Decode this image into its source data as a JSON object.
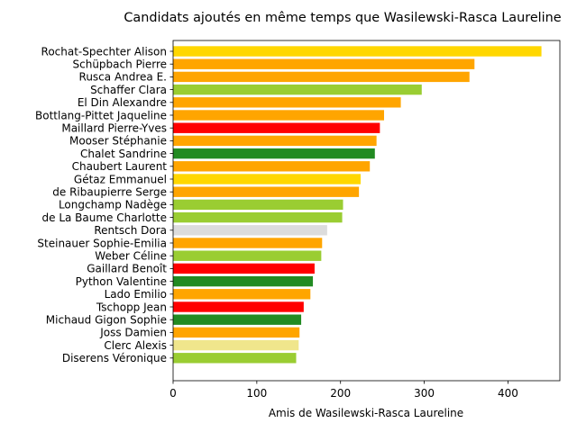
{
  "chart_data": {
    "type": "bar",
    "orientation": "horizontal",
    "title": "Candidats ajoutés en même temps que Wasilewski-Rasca Laureline",
    "xlabel": "Amis de Wasilewski-Rasca Laureline",
    "ylabel": "",
    "xlim": [
      0,
      462
    ],
    "xticks": [
      0,
      100,
      200,
      300,
      400
    ],
    "grid": false,
    "categories": [
      "Rochat-Spechter Alison",
      "Schüpbach Pierre",
      "Rusca Andrea E.",
      "Schaffer Clara",
      "El Din Alexandre",
      "Bottlang-Pittet Jaqueline",
      "Maillard Pierre-Yves",
      "Mooser Stéphanie",
      "Chalet Sandrine",
      "Chaubert Laurent",
      "Gétaz Emmanuel",
      "de Ribaupierre Serge",
      "Longchamp Nadège",
      "de La Baume Charlotte",
      "Rentsch Dora",
      "Steinauer Sophie-Emilia",
      "Weber Céline",
      "Gaillard Benoît",
      "Python Valentine",
      "Lado Emilio",
      "Tschopp Jean",
      "Michaud Gigon Sophie",
      "Joss Damien",
      "Clerc Alexis",
      "Diserens Véronique"
    ],
    "values": [
      440,
      360,
      354,
      297,
      272,
      252,
      247,
      243,
      241,
      235,
      224,
      222,
      203,
      202,
      184,
      178,
      177,
      169,
      167,
      164,
      156,
      153,
      151,
      150,
      147
    ],
    "colors": [
      "#ffd700",
      "#ffa500",
      "#ffa500",
      "#9acd32",
      "#ffa500",
      "#ffa500",
      "#ff0000",
      "#ffa500",
      "#228b22",
      "#ffa500",
      "#ffd700",
      "#ffa500",
      "#9acd32",
      "#9acd32",
      "#dcdcdc",
      "#ffa500",
      "#9acd32",
      "#ff0000",
      "#228b22",
      "#ffa500",
      "#ff0000",
      "#228b22",
      "#ffa500",
      "#f0e68c",
      "#9acd32"
    ]
  }
}
